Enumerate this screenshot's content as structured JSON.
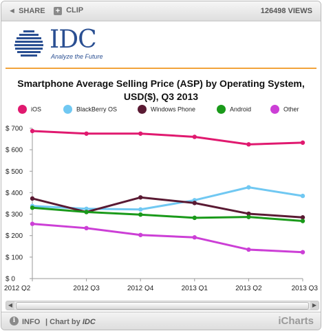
{
  "toolbar": {
    "share_label": "SHARE",
    "clip_label": "CLIP",
    "views_label": "126498 VIEWS"
  },
  "logo": {
    "text": "IDC",
    "tagline": "Analyze the Future"
  },
  "footer": {
    "info_label": "INFO",
    "chart_by_prefix": "| Chart by",
    "chart_by_brand": "IDC",
    "brand_mark": "iCharts"
  },
  "chart_data": {
    "type": "line",
    "title": "Smartphone Average Selling Price (ASP) by Operating System, USD($), Q3 2013",
    "title_lines": [
      "Smartphone Average Selling Price (ASP) by Operating System,",
      "USD($), Q3 2013"
    ],
    "x": [
      "2012 Q2",
      "2012 Q3",
      "2012 Q4",
      "2013 Q1",
      "2013 Q2",
      "2013 Q3"
    ],
    "ylim": [
      0,
      700
    ],
    "yticks": [
      0,
      100,
      200,
      300,
      400,
      500,
      600,
      700
    ],
    "ytick_labels": [
      "$ 0",
      "$ 100",
      "$ 200",
      "$ 300",
      "$ 400",
      "$ 500",
      "$ 600",
      "$ 700"
    ],
    "grid": false,
    "legend_position": "top",
    "series": [
      {
        "name": "iOS",
        "color": "#e0196f",
        "values": [
          687,
          675,
          675,
          660,
          625,
          633
        ]
      },
      {
        "name": "BlackBerry OS",
        "color": "#70c8f2",
        "values": [
          338,
          325,
          322,
          365,
          425,
          385
        ]
      },
      {
        "name": "Windows Phone",
        "color": "#5a1a33",
        "values": [
          373,
          310,
          378,
          352,
          302,
          285
        ]
      },
      {
        "name": "Android",
        "color": "#1a9a1a",
        "values": [
          330,
          310,
          298,
          283,
          287,
          268
        ]
      },
      {
        "name": "Other",
        "color": "#cc3fd6",
        "values": [
          255,
          235,
          203,
          192,
          135,
          123
        ]
      }
    ]
  }
}
